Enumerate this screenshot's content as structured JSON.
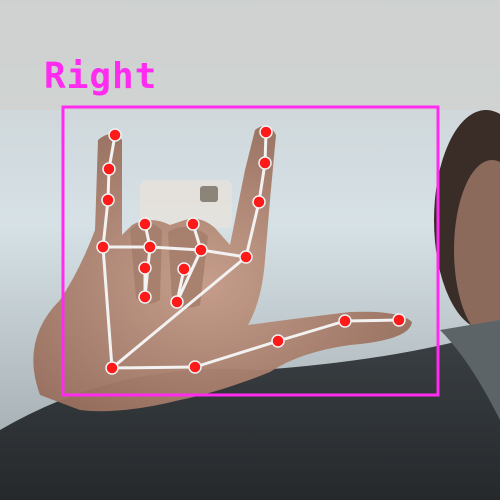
{
  "overlay": {
    "handedness_label": "Right",
    "box_color": "#ff2bf0",
    "landmark_color": "#ff1a1a",
    "connection_color": "#f2f2f2"
  },
  "hand": {
    "connections": [
      [
        0,
        1
      ],
      [
        1,
        2
      ],
      [
        2,
        3
      ],
      [
        3,
        4
      ],
      [
        0,
        5
      ],
      [
        5,
        6
      ],
      [
        6,
        7
      ],
      [
        7,
        8
      ],
      [
        5,
        9
      ],
      [
        9,
        10
      ],
      [
        10,
        11
      ],
      [
        11,
        12
      ],
      [
        9,
        13
      ],
      [
        13,
        14
      ],
      [
        14,
        15
      ],
      [
        15,
        16
      ],
      [
        13,
        17
      ],
      [
        17,
        18
      ],
      [
        18,
        19
      ],
      [
        19,
        20
      ],
      [
        0,
        17
      ]
    ]
  }
}
